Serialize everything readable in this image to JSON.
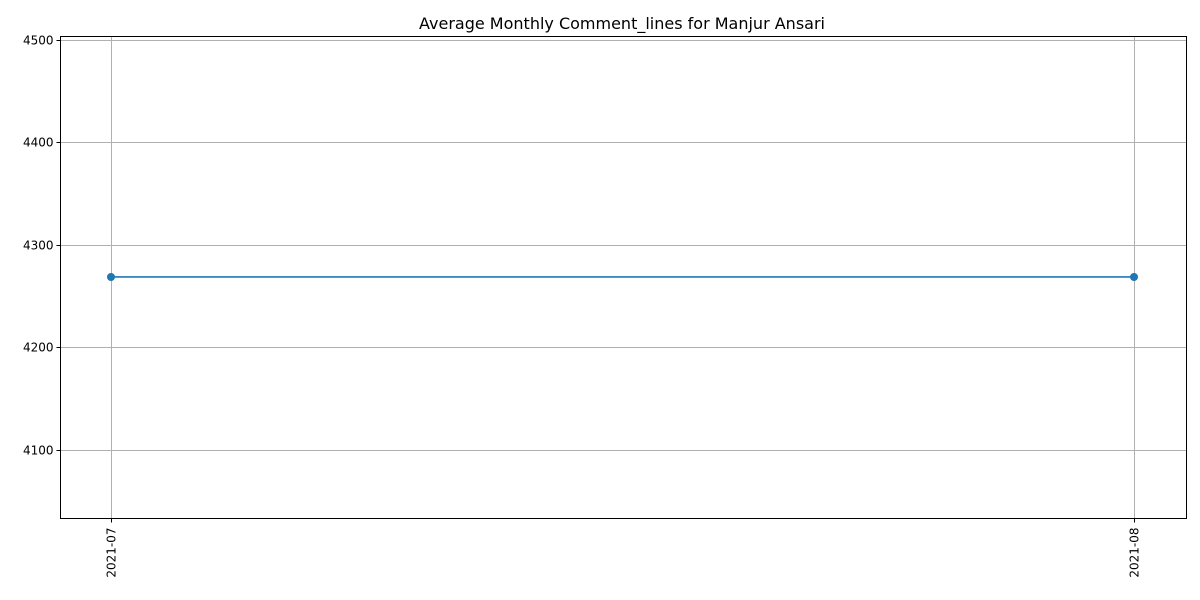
{
  "chart_data": {
    "type": "line",
    "title": "Average Monthly Comment_lines for Manjur Ansari",
    "xlabel": "",
    "ylabel": "",
    "categories": [
      "2021-07",
      "2021-08"
    ],
    "series": [
      {
        "values": [
          4268.5,
          4268.5
        ]
      }
    ],
    "ylim": [
      4033,
      4503
    ],
    "yticks": [
      4100,
      4200,
      4300,
      4400,
      4500
    ],
    "grid": true,
    "marker": "circle",
    "color": "#1f77b4",
    "x_tick_rotation": "vertical"
  }
}
